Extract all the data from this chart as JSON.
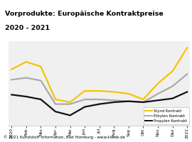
{
  "title_line1": "Vorprodukte: Europäische Kontraktpreise",
  "title_line2": "2020 - 2021",
  "title_bg": "#f5c400",
  "footer": "© 2021 Kunststoff Information, Bad Homburg - www.kiweb.de",
  "footer_bg": "#999999",
  "x_labels": [
    "2020",
    "Feb",
    "Mrz",
    "Apr",
    "Mai",
    "Jun",
    "Jul",
    "Aug",
    "Sep",
    "Okt",
    "Nov",
    "Dez",
    "2021"
  ],
  "styrol": [
    1050,
    1130,
    1080,
    730,
    700,
    820,
    820,
    810,
    790,
    730,
    900,
    1030,
    1280
  ],
  "ethylen": [
    940,
    960,
    930,
    680,
    680,
    730,
    730,
    720,
    710,
    700,
    790,
    870,
    1000
  ],
  "propylen": [
    780,
    760,
    730,
    600,
    560,
    650,
    680,
    700,
    710,
    700,
    720,
    740,
    810
  ],
  "styrol_color": "#f5c400",
  "ethylen_color": "#aaaaaa",
  "propylen_color": "#111111",
  "plot_bg": "#f0f0f0",
  "bg_color": "#ffffff",
  "legend_labels": [
    "Styrol Kontrakt",
    "Ethylen Kontrakt",
    "Propylen Kontrakt"
  ],
  "lw": 1.6,
  "ylim_low": 450,
  "ylim_high": 1350
}
